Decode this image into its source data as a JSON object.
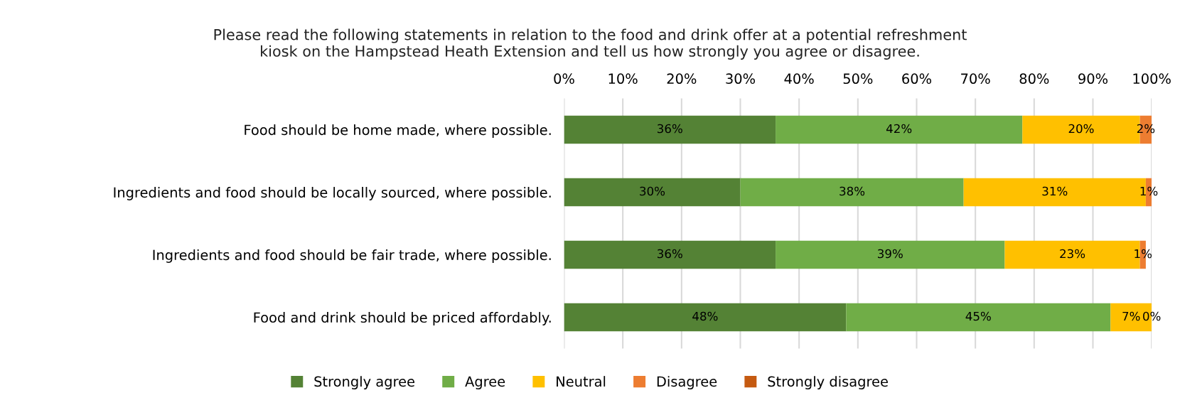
{
  "chart_data": {
    "type": "bar",
    "orientation": "horizontal",
    "stacked": true,
    "title": "Please read the following statements in relation to the food and drink offer at a potential refreshment\nkiosk on the Hampstead Heath Extension and tell us how strongly you agree or disagree.",
    "categories": [
      "Food should be home made, where possible.",
      "Ingredients and food should be locally sourced, where possible.",
      "Ingredients and food should be fair trade, where possible.",
      "Food and drink should be priced affordably."
    ],
    "series": [
      {
        "name": "Strongly agree",
        "color": "#548235",
        "values": [
          36,
          30,
          36,
          48
        ],
        "value_labels": [
          "36%",
          "30%",
          "36%",
          "48%"
        ]
      },
      {
        "name": "Agree",
        "color": "#70ad47",
        "values": [
          42,
          38,
          39,
          45
        ],
        "value_labels": [
          "42%",
          "38%",
          "39%",
          "45%"
        ]
      },
      {
        "name": "Neutral",
        "color": "#ffc000",
        "values": [
          20,
          31,
          23,
          7
        ],
        "value_labels": [
          "20%",
          "31%",
          "23%",
          "7%"
        ]
      },
      {
        "name": "Disagree",
        "color": "#ed7d31",
        "values": [
          2,
          1,
          1,
          0
        ],
        "value_labels": [
          "2%",
          "1%",
          "1%",
          "0%"
        ]
      },
      {
        "name": "Strongly disagree",
        "color": "#c55a11",
        "values": [
          0,
          0,
          0,
          0
        ],
        "value_labels": [
          null,
          null,
          null,
          null
        ]
      }
    ],
    "xlim": [
      0,
      100
    ],
    "xticks": [
      {
        "value": 0,
        "label": "0%"
      },
      {
        "value": 10,
        "label": "10%"
      },
      {
        "value": 20,
        "label": "20%"
      },
      {
        "value": 30,
        "label": "30%"
      },
      {
        "value": 40,
        "label": "40%"
      },
      {
        "value": 50,
        "label": "50%"
      },
      {
        "value": 60,
        "label": "60%"
      },
      {
        "value": 70,
        "label": "70%"
      },
      {
        "value": 80,
        "label": "80%"
      },
      {
        "value": 90,
        "label": "90%"
      },
      {
        "value": 100,
        "label": "100%"
      }
    ],
    "grid": "x",
    "legend": "bottom"
  }
}
